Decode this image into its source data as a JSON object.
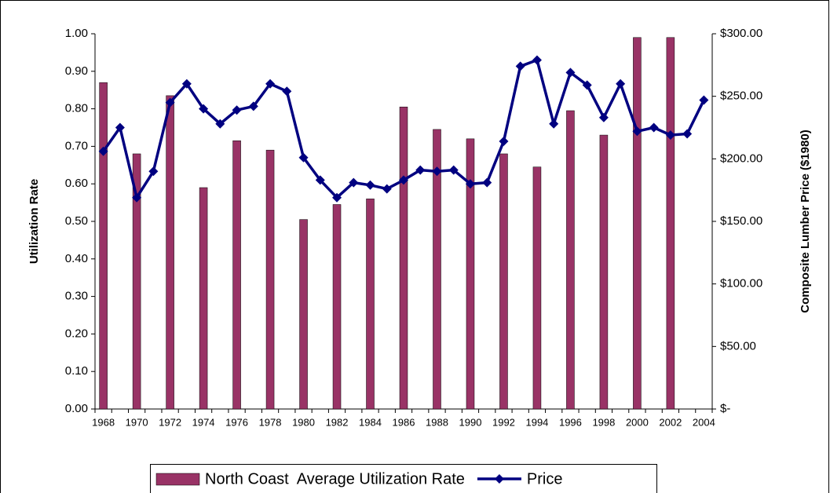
{
  "chart_data": {
    "type": "bar-line",
    "y_label": "Utilization Rate",
    "y2_label": "Composite Lumber Price ($1980)",
    "categories": [
      "1968",
      null,
      "1970",
      null,
      "1972",
      null,
      "1974",
      null,
      "1976",
      null,
      "1978",
      null,
      "1980",
      null,
      "1982",
      null,
      "1984",
      null,
      "1986",
      null,
      "1988",
      null,
      "1990",
      null,
      "1992",
      null,
      "1994",
      null,
      "1996",
      null,
      "1998",
      null,
      "2000",
      null,
      "2002",
      null,
      "2004"
    ],
    "series": [
      {
        "name": "North Coast  Average Utilization Rate",
        "type": "bar",
        "color": "#993366",
        "values": [
          0.87,
          null,
          0.68,
          null,
          0.835,
          null,
          0.59,
          null,
          0.715,
          null,
          0.69,
          null,
          0.505,
          null,
          0.545,
          null,
          0.56,
          null,
          0.805,
          null,
          0.745,
          null,
          0.72,
          null,
          0.68,
          null,
          0.645,
          null,
          0.795,
          null,
          0.73,
          null,
          0.99,
          null,
          0.99,
          null,
          null
        ]
      },
      {
        "name": "Price",
        "type": "line",
        "axis": "y2",
        "color": "#000080",
        "values": [
          206,
          225,
          169,
          190,
          245,
          260,
          240,
          228,
          239,
          242,
          260,
          254,
          201,
          183,
          169,
          181,
          179,
          176,
          183,
          191,
          190,
          191,
          180,
          181,
          214,
          274,
          279,
          228,
          269,
          259,
          233,
          260,
          222,
          225,
          219,
          220,
          247
        ]
      }
    ],
    "ylim": [
      0,
      1
    ],
    "yticks": [
      {
        "value": 0,
        "label": "0.00"
      },
      {
        "value": 0.1,
        "label": "0.10"
      },
      {
        "value": 0.2,
        "label": "0.20"
      },
      {
        "value": 0.3,
        "label": "0.30"
      },
      {
        "value": 0.4,
        "label": "0.40"
      },
      {
        "value": 0.5,
        "label": "0.50"
      },
      {
        "value": 0.6,
        "label": "0.60"
      },
      {
        "value": 0.7,
        "label": "0.70"
      },
      {
        "value": 0.8,
        "label": "0.80"
      },
      {
        "value": 0.9,
        "label": "0.90"
      },
      {
        "value": 1,
        "label": "1.00"
      }
    ],
    "y2lim": [
      0,
      300
    ],
    "y2ticks": [
      {
        "value": 0,
        "label": "$-"
      },
      {
        "value": 50,
        "label": "$50.00"
      },
      {
        "value": 100,
        "label": "$100.00"
      },
      {
        "value": 150,
        "label": "$150.00"
      },
      {
        "value": 200,
        "label": "$200.00"
      },
      {
        "value": 250,
        "label": "$250.00"
      },
      {
        "value": 300,
        "label": "$300.00"
      }
    ],
    "legend": "bottom"
  }
}
